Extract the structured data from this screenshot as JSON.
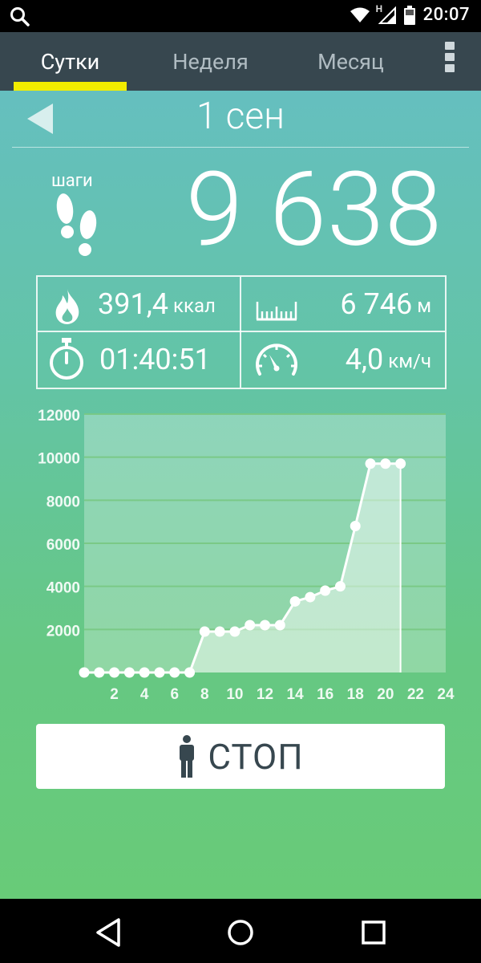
{
  "status_bar": {
    "time": "20:07",
    "network_label": "H",
    "icons": [
      "search-icon",
      "wifi-icon",
      "signal-icon",
      "battery-icon"
    ]
  },
  "tabs": [
    {
      "label": "Сутки",
      "active": true
    },
    {
      "label": "Неделя",
      "active": false
    },
    {
      "label": "Месяц",
      "active": false
    }
  ],
  "header": {
    "date": "1 сен"
  },
  "steps": {
    "label": "шаги",
    "value": "9 638"
  },
  "stats": {
    "calories": {
      "value": "391,4",
      "unit": "ккал"
    },
    "distance": {
      "value": "6 746",
      "unit": "м"
    },
    "duration": {
      "value": "01:40:51"
    },
    "speed": {
      "value": "4,0",
      "unit": "км/ч"
    }
  },
  "chart_data": {
    "type": "area",
    "title": "",
    "xlabel": "",
    "ylabel": "",
    "x_ticks": [
      "2",
      "4",
      "6",
      "8",
      "10",
      "12",
      "14",
      "16",
      "18",
      "20",
      "22",
      "24"
    ],
    "y_ticks": [
      "2000",
      "4000",
      "6000",
      "8000",
      "10000",
      "12000"
    ],
    "xlim": [
      0,
      24
    ],
    "ylim": [
      0,
      12000
    ],
    "grid": true,
    "series": [
      {
        "x": [
          0,
          1,
          2,
          3,
          4,
          5,
          6,
          7,
          8,
          9,
          10,
          11,
          12,
          13,
          14,
          15,
          16,
          17,
          18,
          19,
          20,
          21
        ],
        "values": [
          0,
          0,
          0,
          0,
          0,
          0,
          0,
          0,
          1900,
          1900,
          1900,
          2200,
          2200,
          2200,
          3300,
          3500,
          3800,
          4000,
          6800,
          9700,
          9700,
          9700
        ]
      }
    ]
  },
  "stop_button": {
    "label": "СТОП"
  },
  "colors": {
    "tab_bar": "#37474f",
    "indicator": "#f2ec00",
    "gradient_top": "#65bfbf",
    "gradient_bottom": "#68cb78"
  }
}
